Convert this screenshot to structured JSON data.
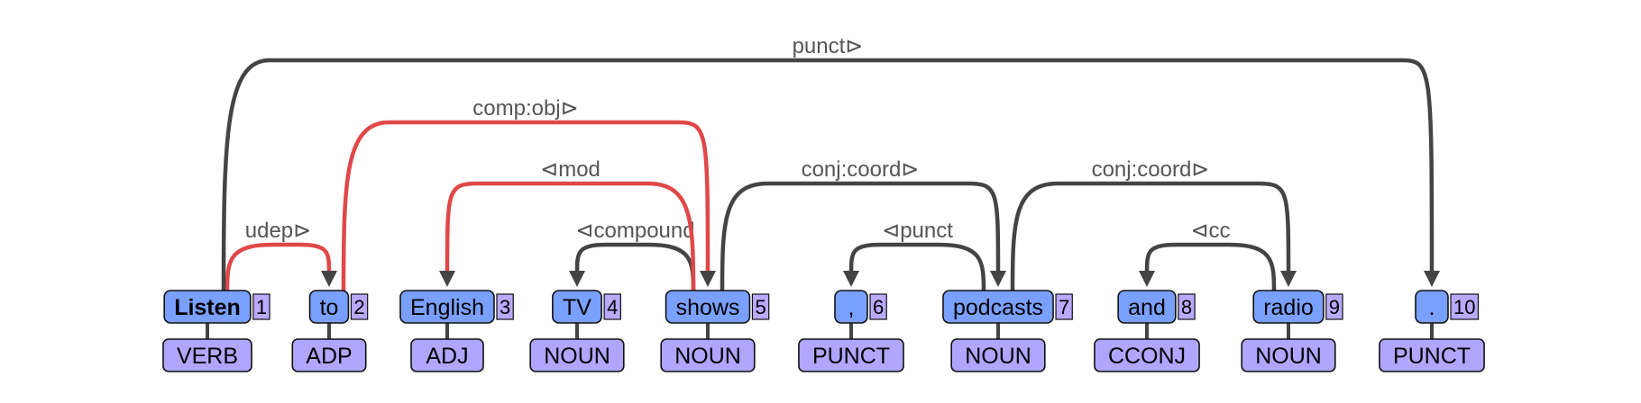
{
  "colors": {
    "word_fill": "#7aa0ff",
    "pos_fill": "#b0a6ff",
    "index_fill": "#b9a9ff",
    "arc_default": "#444444",
    "arc_highlight": "#e04848",
    "label_color": "#555555"
  },
  "tokens": [
    {
      "id": 1,
      "index": "1",
      "word": "Listen",
      "pos": "VERB",
      "root": true
    },
    {
      "id": 2,
      "index": "2",
      "word": "to",
      "pos": "ADP"
    },
    {
      "id": 3,
      "index": "3",
      "word": "English",
      "pos": "ADJ"
    },
    {
      "id": 4,
      "index": "4",
      "word": "TV",
      "pos": "NOUN"
    },
    {
      "id": 5,
      "index": "5",
      "word": "shows",
      "pos": "NOUN"
    },
    {
      "id": 6,
      "index": "6",
      "word": ",",
      "pos": "PUNCT"
    },
    {
      "id": 7,
      "index": "7",
      "word": "podcasts",
      "pos": "NOUN"
    },
    {
      "id": 8,
      "index": "8",
      "word": "and",
      "pos": "CCONJ"
    },
    {
      "id": 9,
      "index": "9",
      "word": "radio",
      "pos": "NOUN"
    },
    {
      "id": 10,
      "index": "10",
      "word": ".",
      "pos": "PUNCT"
    }
  ],
  "arcs": [
    {
      "head": 1,
      "dep": 2,
      "label": "udep⊳",
      "level": 1,
      "highlight": true
    },
    {
      "head": 5,
      "dep": 4,
      "label": "⊲compound",
      "level": 1,
      "highlight": false
    },
    {
      "head": 7,
      "dep": 6,
      "label": "⊲punct",
      "level": 1,
      "highlight": false
    },
    {
      "head": 9,
      "dep": 8,
      "label": "⊲cc",
      "level": 1,
      "highlight": false
    },
    {
      "head": 5,
      "dep": 3,
      "label": "⊲mod",
      "level": 2,
      "highlight": true
    },
    {
      "head": 5,
      "dep": 7,
      "label": "conj:coord⊳",
      "level": 2,
      "highlight": false
    },
    {
      "head": 7,
      "dep": 9,
      "label": "conj:coord⊳",
      "level": 2,
      "highlight": false
    },
    {
      "head": 2,
      "dep": 5,
      "label": "comp:obj⊳",
      "level": 3,
      "highlight": true
    },
    {
      "head": 1,
      "dep": 10,
      "label": "punct⊳",
      "level": 4,
      "highlight": false
    }
  ]
}
